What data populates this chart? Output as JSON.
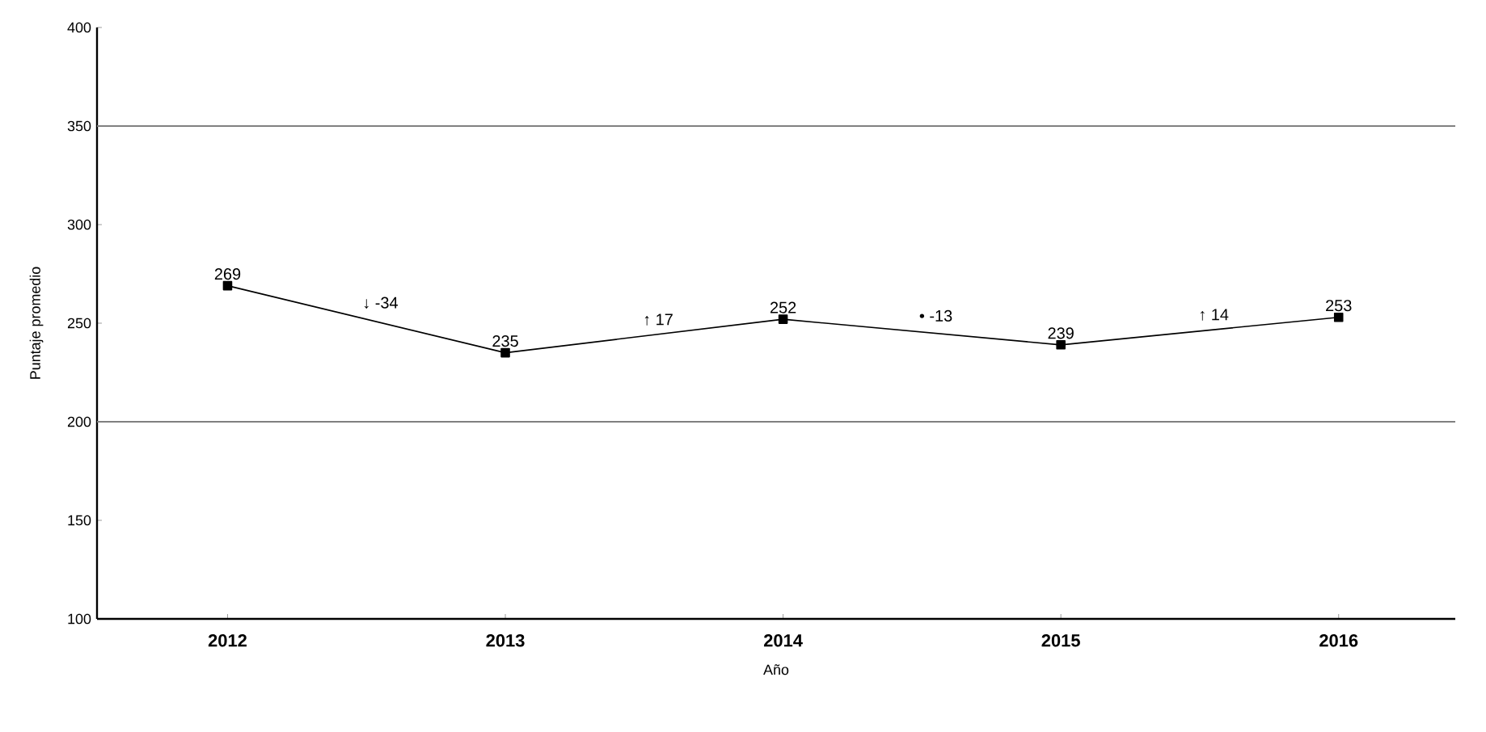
{
  "chart_data": {
    "type": "line",
    "xlabel": "Año",
    "ylabel": "Puntaje promedio",
    "categories": [
      "2012",
      "2013",
      "2014",
      "2015",
      "2016"
    ],
    "values": [
      269,
      235,
      252,
      239,
      253
    ],
    "color": "#000000",
    "marker": "square",
    "line_style": "solid",
    "data_labels": true,
    "ylim": [
      100,
      400
    ],
    "yticks": [
      100,
      150,
      200,
      250,
      300,
      350,
      400
    ],
    "ref_lines": [
      {
        "axis": "y",
        "value": 350,
        "color": "#808080"
      },
      {
        "axis": "y",
        "value": 200,
        "color": "#808080"
      }
    ],
    "annotations": [
      "↓ -34",
      "↑ 17",
      "• -13",
      "↑ 14"
    ],
    "tick_labels": "xy"
  }
}
